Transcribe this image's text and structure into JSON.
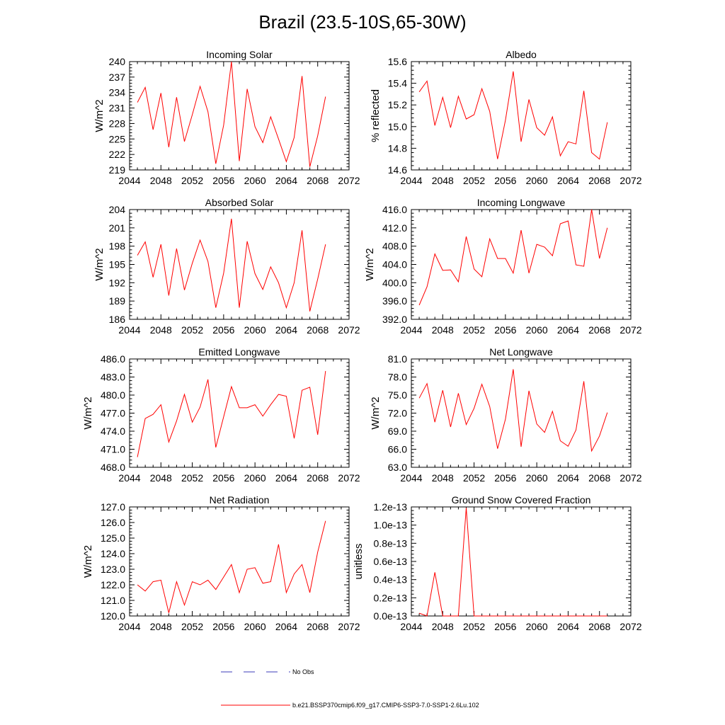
{
  "figure": {
    "title": "Brazil (23.5-10S,65-30W)"
  },
  "legend": {
    "entries": [
      {
        "label": "No Obs",
        "style": "dashed",
        "color": "#3b3bb8"
      },
      {
        "label": "b.e21.BSSP370cmip6.f09_g17.CMIP6-SSP3-7.0-SSP1-2.6Lu.102",
        "style": "solid",
        "color": "#ff0000"
      }
    ]
  },
  "chart_data": [
    {
      "type": "line",
      "title": "Incoming Solar",
      "xlabel": "",
      "ylabel": "W/m^2",
      "xlim": [
        2044,
        2072
      ],
      "ylim": [
        219,
        240
      ],
      "xticks": [
        2044,
        2048,
        2052,
        2056,
        2060,
        2064,
        2068,
        2072
      ],
      "xtick_labels": [
        "2044",
        "2048",
        "2052",
        "2056",
        "2060",
        "2064",
        "2068",
        "2072"
      ],
      "yticks": [
        219,
        222,
        225,
        228,
        231,
        234,
        237,
        240
      ],
      "ytick_labels": [
        "219",
        "222",
        "225",
        "228",
        "231",
        "234",
        "237",
        "240"
      ],
      "grid": false,
      "series": [
        {
          "color": "#ff0000",
          "x": [
            2045,
            2046,
            2047,
            2048,
            2049,
            2050,
            2051,
            2052,
            2053,
            2054,
            2055,
            2056,
            2057,
            2058,
            2059,
            2060,
            2061,
            2062,
            2063,
            2064,
            2065,
            2066,
            2067,
            2068,
            2069
          ],
          "y": [
            232.1,
            235.0,
            226.8,
            233.9,
            223.4,
            233.1,
            224.5,
            229.7,
            235.2,
            230.3,
            220.2,
            227.7,
            240.0,
            220.7,
            234.7,
            227.4,
            224.3,
            229.3,
            225.0,
            220.6,
            225.3,
            237.2,
            219.6,
            225.6,
            233.2
          ]
        }
      ]
    },
    {
      "type": "line",
      "title": "Albedo",
      "xlabel": "",
      "ylabel": "% reflected",
      "xlim": [
        2044,
        2072
      ],
      "ylim": [
        14.6,
        15.6
      ],
      "xticks": [
        2044,
        2048,
        2052,
        2056,
        2060,
        2064,
        2068,
        2072
      ],
      "xtick_labels": [
        "2044",
        "2048",
        "2052",
        "2056",
        "2060",
        "2064",
        "2068",
        "2072"
      ],
      "yticks": [
        14.6,
        14.8,
        15.0,
        15.2,
        15.4,
        15.6
      ],
      "ytick_labels": [
        "14.6",
        "14.8",
        "15.0",
        "15.2",
        "15.4",
        "15.6"
      ],
      "grid": false,
      "series": [
        {
          "color": "#ff0000",
          "x": [
            2045,
            2046,
            2047,
            2048,
            2049,
            2050,
            2051,
            2052,
            2053,
            2054,
            2055,
            2056,
            2057,
            2058,
            2059,
            2060,
            2061,
            2062,
            2063,
            2064,
            2065,
            2066,
            2067,
            2068,
            2069
          ],
          "y": [
            15.32,
            15.42,
            15.01,
            15.27,
            14.99,
            15.28,
            15.07,
            15.11,
            15.35,
            15.14,
            14.7,
            15.06,
            15.51,
            14.86,
            15.25,
            14.99,
            14.92,
            15.09,
            14.73,
            14.86,
            14.84,
            15.33,
            14.76,
            14.7,
            15.04
          ]
        }
      ]
    },
    {
      "type": "line",
      "title": "Absorbed Solar",
      "xlabel": "",
      "ylabel": "W/m^2",
      "xlim": [
        2044,
        2072
      ],
      "ylim": [
        186,
        204
      ],
      "xticks": [
        2044,
        2048,
        2052,
        2056,
        2060,
        2064,
        2068,
        2072
      ],
      "xtick_labels": [
        "2044",
        "2048",
        "2052",
        "2056",
        "2060",
        "2064",
        "2068",
        "2072"
      ],
      "yticks": [
        186,
        189,
        192,
        195,
        198,
        201,
        204
      ],
      "ytick_labels": [
        "186",
        "189",
        "192",
        "195",
        "198",
        "201",
        "204"
      ],
      "grid": false,
      "series": [
        {
          "color": "#ff0000",
          "x": [
            2045,
            2046,
            2047,
            2048,
            2049,
            2050,
            2051,
            2052,
            2053,
            2054,
            2055,
            2056,
            2057,
            2058,
            2059,
            2060,
            2061,
            2062,
            2063,
            2064,
            2065,
            2066,
            2067,
            2068,
            2069
          ],
          "y": [
            196.5,
            198.7,
            192.9,
            198.3,
            189.9,
            197.6,
            190.8,
            195.2,
            199.0,
            195.5,
            187.9,
            193.6,
            202.5,
            187.9,
            198.8,
            193.5,
            190.9,
            194.6,
            192.0,
            187.9,
            192.0,
            200.6,
            187.3,
            192.6,
            198.3
          ]
        }
      ]
    },
    {
      "type": "line",
      "title": "Incoming Longwave",
      "xlabel": "",
      "ylabel": "W/m^2",
      "xlim": [
        2044,
        2072
      ],
      "ylim": [
        392,
        416
      ],
      "xticks": [
        2044,
        2048,
        2052,
        2056,
        2060,
        2064,
        2068,
        2072
      ],
      "xtick_labels": [
        "2044",
        "2048",
        "2052",
        "2056",
        "2060",
        "2064",
        "2068",
        "2072"
      ],
      "yticks": [
        392,
        396,
        400,
        404,
        408,
        412,
        416
      ],
      "ytick_labels": [
        "392.0",
        "396.0",
        "400.0",
        "404.0",
        "408.0",
        "412.0",
        "416.0"
      ],
      "grid": false,
      "series": [
        {
          "color": "#ff0000",
          "x": [
            2045,
            2046,
            2047,
            2048,
            2049,
            2050,
            2051,
            2052,
            2053,
            2054,
            2055,
            2056,
            2057,
            2058,
            2059,
            2060,
            2061,
            2062,
            2063,
            2064,
            2065,
            2066,
            2067,
            2068,
            2069
          ],
          "y": [
            395.1,
            399.1,
            406.3,
            402.7,
            402.8,
            400.2,
            410.1,
            403.0,
            401.3,
            409.6,
            405.3,
            405.3,
            402.1,
            411.5,
            402.1,
            408.4,
            407.8,
            405.9,
            412.9,
            413.5,
            403.9,
            403.6,
            416.0,
            405.3,
            412.0
          ]
        }
      ]
    },
    {
      "type": "line",
      "title": "Emitted Longwave",
      "xlabel": "",
      "ylabel": "W/m^2",
      "xlim": [
        2044,
        2072
      ],
      "ylim": [
        468,
        486
      ],
      "xticks": [
        2044,
        2048,
        2052,
        2056,
        2060,
        2064,
        2068,
        2072
      ],
      "xtick_labels": [
        "2044",
        "2048",
        "2052",
        "2056",
        "2060",
        "2064",
        "2068",
        "2072"
      ],
      "yticks": [
        468,
        471,
        474,
        477,
        480,
        483,
        486
      ],
      "ytick_labels": [
        "468.0",
        "471.0",
        "474.0",
        "477.0",
        "480.0",
        "483.0",
        "486.0"
      ],
      "grid": false,
      "series": [
        {
          "color": "#ff0000",
          "x": [
            2045,
            2046,
            2047,
            2048,
            2049,
            2050,
            2051,
            2052,
            2053,
            2054,
            2055,
            2056,
            2057,
            2058,
            2059,
            2060,
            2061,
            2062,
            2063,
            2064,
            2065,
            2066,
            2067,
            2068,
            2069
          ],
          "y": [
            469.7,
            476.1,
            476.8,
            478.4,
            472.2,
            475.7,
            480.1,
            475.5,
            478.0,
            482.6,
            471.3,
            476.4,
            481.4,
            477.9,
            477.9,
            478.4,
            476.5,
            478.4,
            480.1,
            479.8,
            472.8,
            480.8,
            481.3,
            473.4,
            484.0
          ]
        }
      ]
    },
    {
      "type": "line",
      "title": "Net Longwave",
      "xlabel": "",
      "ylabel": "W/m^2",
      "xlim": [
        2044,
        2072
      ],
      "ylim": [
        63,
        81
      ],
      "xticks": [
        2044,
        2048,
        2052,
        2056,
        2060,
        2064,
        2068,
        2072
      ],
      "xtick_labels": [
        "2044",
        "2048",
        "2052",
        "2056",
        "2060",
        "2064",
        "2068",
        "2072"
      ],
      "yticks": [
        63,
        66,
        69,
        72,
        75,
        78,
        81
      ],
      "ytick_labels": [
        "63.0",
        "66.0",
        "69.0",
        "72.0",
        "75.0",
        "78.0",
        "81.0"
      ],
      "grid": false,
      "series": [
        {
          "color": "#ff0000",
          "x": [
            2045,
            2046,
            2047,
            2048,
            2049,
            2050,
            2051,
            2052,
            2053,
            2054,
            2055,
            2056,
            2057,
            2058,
            2059,
            2060,
            2061,
            2062,
            2063,
            2064,
            2065,
            2066,
            2067,
            2068,
            2069
          ],
          "y": [
            74.5,
            76.9,
            70.5,
            75.8,
            69.7,
            75.3,
            70.1,
            72.8,
            76.8,
            73.1,
            66.1,
            71.0,
            79.3,
            66.4,
            75.7,
            70.2,
            68.8,
            72.3,
            67.4,
            66.5,
            69.2,
            77.3,
            65.7,
            68.2,
            72.1
          ]
        }
      ]
    },
    {
      "type": "line",
      "title": "Net Radiation",
      "xlabel": "",
      "ylabel": "W/m^2",
      "xlim": [
        2044,
        2072
      ],
      "ylim": [
        120,
        127
      ],
      "xticks": [
        2044,
        2048,
        2052,
        2056,
        2060,
        2064,
        2068,
        2072
      ],
      "xtick_labels": [
        "2044",
        "2048",
        "2052",
        "2056",
        "2060",
        "2064",
        "2068",
        "2072"
      ],
      "yticks": [
        120,
        121,
        122,
        123,
        124,
        125,
        126,
        127
      ],
      "ytick_labels": [
        "120.0",
        "121.0",
        "122.0",
        "123.0",
        "124.0",
        "125.0",
        "126.0",
        "127.0"
      ],
      "grid": false,
      "series": [
        {
          "color": "#ff0000",
          "x": [
            2045,
            2046,
            2047,
            2048,
            2049,
            2050,
            2051,
            2052,
            2053,
            2054,
            2055,
            2056,
            2057,
            2058,
            2059,
            2060,
            2061,
            2062,
            2063,
            2064,
            2065,
            2066,
            2067,
            2068,
            2069
          ],
          "y": [
            122.0,
            121.6,
            122.2,
            122.3,
            120.2,
            122.2,
            120.7,
            122.2,
            122.0,
            122.3,
            121.7,
            122.5,
            123.3,
            121.5,
            123.0,
            123.1,
            122.1,
            122.2,
            124.6,
            121.5,
            122.7,
            123.3,
            121.5,
            124.1,
            126.1
          ]
        }
      ]
    },
    {
      "type": "line",
      "title": "Ground Snow Covered Fraction",
      "xlabel": "",
      "ylabel": "unitless",
      "xlim": [
        2044,
        2072
      ],
      "ylim": [
        0,
        1.2e-13
      ],
      "xticks": [
        2044,
        2048,
        2052,
        2056,
        2060,
        2064,
        2068,
        2072
      ],
      "xtick_labels": [
        "2044",
        "2048",
        "2052",
        "2056",
        "2060",
        "2064",
        "2068",
        "2072"
      ],
      "yticks": [
        0,
        2e-14,
        4e-14,
        6e-14,
        8e-14,
        1e-13,
        1.2e-13
      ],
      "ytick_labels": [
        "0.0e-13",
        "0.2e-13",
        "0.4e-13",
        "0.6e-13",
        "0.8e-13",
        "1.0e-13",
        "1.2e-13"
      ],
      "grid": false,
      "series": [
        {
          "color": "#ff0000",
          "x": [
            2045,
            2046,
            2047,
            2048,
            2049,
            2050,
            2051,
            2052,
            2053,
            2054,
            2055,
            2056,
            2057,
            2058,
            2059,
            2060,
            2061,
            2062,
            2063,
            2064,
            2065,
            2066,
            2067,
            2068,
            2069
          ],
          "y": [
            3e-15,
            0,
            4.8e-14,
            0,
            0,
            0,
            1.19e-13,
            0,
            0,
            0,
            0,
            0,
            0,
            0,
            0,
            0,
            0,
            0,
            0,
            0,
            0,
            0,
            0,
            0,
            0
          ]
        }
      ]
    }
  ]
}
